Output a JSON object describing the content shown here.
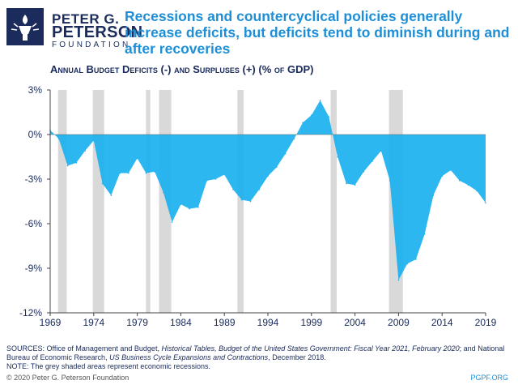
{
  "logo": {
    "line1": "PETER G.",
    "line2": "PETERSON",
    "line3": "FOUNDATION"
  },
  "headline": "Recessions and countercyclical policies generally increase deficits, but deficits tend to diminish during and after recoveries",
  "subtitle": "Annual Budget Deficits (-) and Surpluses (+) (% of GDP)",
  "colors": {
    "area": "#1bb1f0",
    "recession": "#d9d9d9",
    "headline": "#1e8fd6",
    "text": "#1a2b5c"
  },
  "chart_data": {
    "type": "area",
    "title": "Annual Budget Deficits (-) and Surpluses (+) (% of GDP)",
    "xlabel": "",
    "ylabel": "",
    "ylim": [
      -12,
      3
    ],
    "xlim": [
      1969,
      2019
    ],
    "y_ticks": [
      3,
      0,
      -3,
      -6,
      -9,
      -12
    ],
    "y_tick_labels": [
      "3%",
      "0%",
      "-3%",
      "-6%",
      "-9%",
      "-12%"
    ],
    "x_ticks": [
      1969,
      1974,
      1979,
      1984,
      1989,
      1994,
      1999,
      2004,
      2009,
      2014,
      2019
    ],
    "grid": false,
    "x": [
      1969,
      1970,
      1971,
      1972,
      1973,
      1974,
      1975,
      1976,
      1977,
      1978,
      1979,
      1980,
      1981,
      1982,
      1983,
      1984,
      1985,
      1986,
      1987,
      1988,
      1989,
      1990,
      1991,
      1992,
      1993,
      1994,
      1995,
      1996,
      1997,
      1998,
      1999,
      2000,
      2001,
      2002,
      2003,
      2004,
      2005,
      2006,
      2007,
      2008,
      2009,
      2010,
      2011,
      2012,
      2013,
      2014,
      2015,
      2016,
      2017,
      2018,
      2019
    ],
    "values": [
      0.3,
      -0.3,
      -2.1,
      -1.9,
      -1.1,
      -0.4,
      -3.3,
      -4.1,
      -2.6,
      -2.6,
      -1.6,
      -2.6,
      -2.5,
      -3.9,
      -5.9,
      -4.7,
      -5.0,
      -4.9,
      -3.1,
      -3.0,
      -2.7,
      -3.7,
      -4.4,
      -4.5,
      -3.7,
      -2.8,
      -2.2,
      -1.3,
      -0.3,
      0.8,
      1.3,
      2.3,
      1.2,
      -1.5,
      -3.3,
      -3.4,
      -2.5,
      -1.8,
      -1.1,
      -3.1,
      -9.8,
      -8.7,
      -8.4,
      -6.7,
      -4.1,
      -2.8,
      -2.4,
      -3.1,
      -3.4,
      -3.8,
      -4.6
    ],
    "recessions": [
      [
        1969.9,
        1970.9
      ],
      [
        1973.9,
        1975.2
      ],
      [
        1980.0,
        1980.5
      ],
      [
        1981.5,
        1982.9
      ],
      [
        1990.5,
        1991.2
      ],
      [
        2001.2,
        2001.9
      ],
      [
        2007.9,
        2009.5
      ]
    ]
  },
  "footer": {
    "sources_label": "SOURCES: ",
    "sources_1": "Office of Management and Budget, ",
    "sources_title1": "Historical Tables, Budget of the United States Government: Fiscal Year 2021, February 2020",
    "sources_2": "; and National Bureau of Economic Research, ",
    "sources_title2": "US Business Cycle Expansions and Contractions",
    "sources_3": ", December 2018.",
    "note": "NOTE: The grey shaded areas represent economic recessions."
  },
  "copyright": "© 2020 Peter G. Peterson Foundation",
  "site": "PGPF.ORG"
}
